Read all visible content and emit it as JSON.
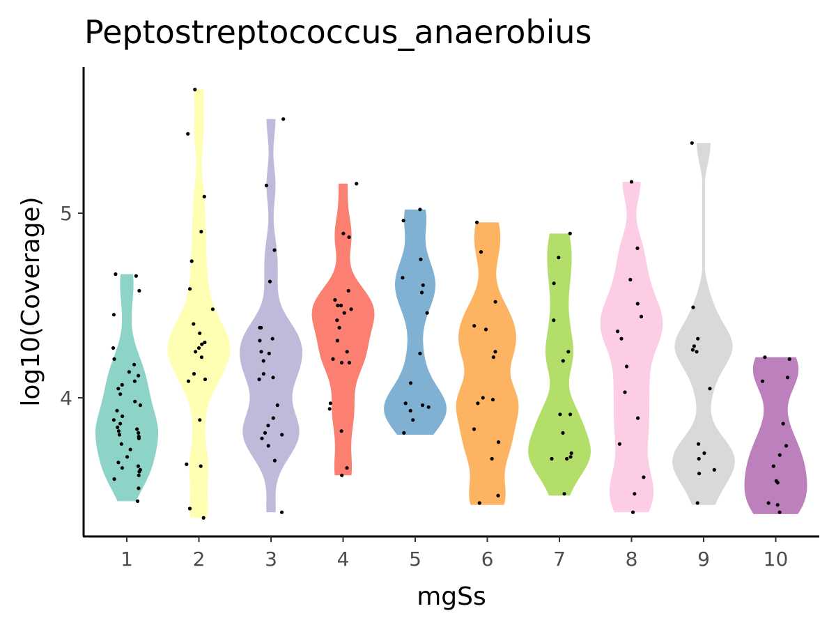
{
  "chart_data": {
    "type": "violin",
    "title": "Peptostreptococcus_anaerobius",
    "xlabel": "mgSs",
    "ylabel": "log10(Coverage)",
    "categories": [
      "1",
      "2",
      "3",
      "4",
      "5",
      "6",
      "7",
      "8",
      "9",
      "10"
    ],
    "y_ticks": [
      4,
      5
    ],
    "ylim": [
      3.25,
      5.78
    ],
    "grid": false,
    "legend": "none",
    "series": [
      {
        "category": "1",
        "color": "#8DD3C7",
        "min": 3.44,
        "max": 4.67,
        "points": [
          4.67,
          4.66,
          4.58,
          4.45,
          4.27,
          4.21,
          4.18,
          4.14,
          4.12,
          4.09,
          4.07,
          4.05,
          4.02,
          3.98,
          3.96,
          3.93,
          3.9,
          3.88,
          3.86,
          3.84,
          3.83,
          3.82,
          3.81,
          3.8,
          3.79,
          3.78,
          3.75,
          3.72,
          3.68,
          3.65,
          3.63,
          3.62,
          3.61,
          3.6,
          3.58,
          3.56,
          3.51,
          3.44
        ]
      },
      {
        "category": "2",
        "color": "#FFFFB3",
        "min": 3.35,
        "max": 5.67,
        "points": [
          5.67,
          5.43,
          5.09,
          4.9,
          4.74,
          4.59,
          4.48,
          4.4,
          4.35,
          4.3,
          4.29,
          4.27,
          4.25,
          4.22,
          4.13,
          4.1,
          4.09,
          3.88,
          3.64,
          3.63,
          3.4,
          3.35
        ]
      },
      {
        "category": "3",
        "color": "#BEBADA",
        "min": 3.38,
        "max": 5.51,
        "points": [
          5.51,
          5.15,
          4.8,
          4.63,
          4.38,
          4.38,
          4.32,
          4.31,
          4.25,
          4.24,
          4.2,
          4.13,
          4.11,
          4.1,
          3.96,
          3.89,
          3.85,
          3.81,
          3.8,
          3.78,
          3.74,
          3.66,
          3.38
        ]
      },
      {
        "category": "4",
        "color": "#FB8072",
        "min": 3.58,
        "max": 5.16,
        "points": [
          5.16,
          4.89,
          4.87,
          4.58,
          4.53,
          4.5,
          4.5,
          4.48,
          4.46,
          4.42,
          4.38,
          4.31,
          4.25,
          4.21,
          4.19,
          4.19,
          3.97,
          3.94,
          3.82,
          3.62,
          3.58
        ]
      },
      {
        "category": "5",
        "color": "#80B1D3",
        "min": 3.8,
        "max": 5.02,
        "points": [
          5.02,
          4.96,
          4.75,
          4.65,
          4.61,
          4.57,
          4.46,
          4.24,
          4.08,
          3.97,
          3.96,
          3.95,
          3.93,
          3.88,
          3.81
        ]
      },
      {
        "category": "6",
        "color": "#FDB462",
        "min": 3.42,
        "max": 4.95,
        "points": [
          4.95,
          4.79,
          4.52,
          4.39,
          4.37,
          4.25,
          4.22,
          4.0,
          3.99,
          3.97,
          3.83,
          3.76,
          3.67,
          3.47,
          3.43
        ]
      },
      {
        "category": "7",
        "color": "#B3DE69",
        "min": 3.47,
        "max": 4.89,
        "points": [
          4.89,
          4.76,
          4.62,
          4.42,
          4.25,
          4.2,
          3.91,
          3.91,
          3.81,
          3.7,
          3.68,
          3.67,
          3.67,
          3.48
        ]
      },
      {
        "category": "8",
        "color": "#FCCDE5",
        "min": 3.38,
        "max": 5.17,
        "points": [
          5.17,
          4.81,
          4.64,
          4.51,
          4.44,
          4.36,
          4.32,
          4.17,
          4.03,
          3.89,
          3.75,
          3.57,
          3.48,
          3.38
        ]
      },
      {
        "category": "9",
        "color": "#D9D9D9",
        "min": 3.42,
        "max": 5.38,
        "points": [
          5.38,
          4.49,
          4.32,
          4.28,
          4.26,
          4.25,
          4.05,
          3.75,
          3.7,
          3.67,
          3.61,
          3.59,
          3.43
        ]
      },
      {
        "category": "10",
        "color": "#BC80BD",
        "min": 3.37,
        "max": 4.22,
        "points": [
          4.22,
          4.21,
          4.11,
          4.09,
          3.86,
          3.74,
          3.69,
          3.63,
          3.55,
          3.54,
          3.43,
          3.42,
          3.38
        ]
      }
    ]
  }
}
